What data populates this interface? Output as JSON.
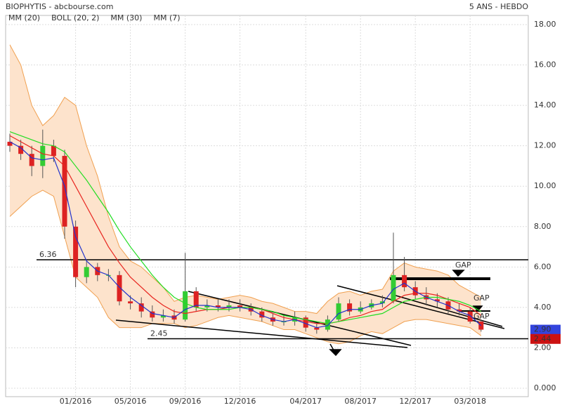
{
  "chart_data": {
    "type": "candlestick",
    "title": "BIOPHYTIS - abcbourse.com",
    "subtitle": "5 ANS - HEBDO",
    "categories": [
      null,
      null,
      null,
      null,
      null,
      null,
      "01/2016",
      null,
      null,
      null,
      null,
      "05/2016",
      null,
      null,
      null,
      null,
      "09/2016",
      null,
      null,
      null,
      null,
      "12/2016",
      null,
      null,
      null,
      null,
      null,
      "04/2017",
      null,
      null,
      null,
      null,
      "08/2017",
      null,
      null,
      null,
      null,
      "12/2017",
      null,
      null,
      null,
      null,
      "03/2018",
      null
    ],
    "open": [
      12.2,
      12.0,
      11.6,
      11.0,
      12.0,
      11.5,
      8.0,
      5.5,
      6.0,
      5.6,
      5.6,
      4.3,
      4.2,
      3.8,
      3.5,
      3.6,
      3.4,
      4.8,
      4.0,
      4.1,
      4.0,
      4.1,
      4.0,
      3.8,
      3.5,
      3.3,
      3.3,
      3.5,
      3.0,
      2.9,
      3.4,
      4.2,
      3.8,
      4.0,
      4.2,
      4.3,
      5.6,
      5.0,
      4.6,
      4.4,
      4.3,
      3.9,
      3.8,
      3.3
    ],
    "high": [
      12.6,
      12.3,
      12.0,
      12.8,
      12.3,
      11.8,
      8.3,
      6.3,
      6.2,
      5.9,
      5.8,
      4.6,
      4.5,
      4.1,
      3.9,
      3.9,
      6.7,
      5.0,
      4.4,
      4.4,
      4.4,
      4.4,
      4.2,
      4.0,
      3.7,
      3.6,
      3.8,
      3.6,
      3.2,
      3.6,
      4.5,
      4.4,
      4.3,
      4.4,
      4.6,
      7.7,
      6.5,
      5.3,
      5.0,
      4.7,
      4.5,
      4.2,
      4.0,
      3.4
    ],
    "low": [
      11.7,
      11.3,
      10.5,
      10.4,
      11.2,
      7.4,
      5.0,
      5.2,
      5.3,
      5.3,
      4.1,
      3.9,
      3.5,
      3.3,
      3.3,
      3.2,
      3.3,
      3.8,
      3.8,
      3.8,
      3.8,
      3.8,
      3.6,
      3.3,
      3.1,
      3.1,
      3.1,
      2.8,
      2.7,
      2.8,
      3.3,
      3.6,
      3.7,
      3.9,
      4.0,
      4.2,
      4.8,
      4.4,
      4.1,
      4.0,
      3.7,
      3.6,
      3.2,
      2.8
    ],
    "close": [
      12.0,
      11.6,
      11.0,
      12.0,
      11.5,
      8.0,
      5.5,
      6.0,
      5.6,
      5.6,
      4.3,
      4.2,
      3.8,
      3.5,
      3.6,
      3.4,
      4.8,
      4.0,
      4.1,
      4.0,
      4.1,
      4.0,
      3.8,
      3.5,
      3.3,
      3.3,
      3.5,
      3.0,
      2.9,
      3.4,
      4.2,
      3.8,
      4.0,
      4.2,
      4.3,
      5.6,
      5.0,
      4.6,
      4.4,
      4.3,
      3.9,
      3.8,
      3.3,
      2.9
    ],
    "up_color": "#33cc33",
    "down_color": "#dd2222",
    "series": [
      {
        "name": "MM (20)",
        "color": "#e8251f",
        "values": [
          12.5,
          12.2,
          11.9,
          11.6,
          11.5,
          11.0,
          10.0,
          9.0,
          8.0,
          7.0,
          6.2,
          5.5,
          5.0,
          4.5,
          4.1,
          3.8,
          3.7,
          3.8,
          3.9,
          3.9,
          4.0,
          4.0,
          4.0,
          3.9,
          3.7,
          3.5,
          3.4,
          3.3,
          3.2,
          3.2,
          3.3,
          3.5,
          3.6,
          3.8,
          3.9,
          4.3,
          4.6,
          4.7,
          4.7,
          4.6,
          4.4,
          4.2,
          4.0,
          3.6
        ]
      },
      {
        "name": "BOLL (20, 2)",
        "color": "#f0a050",
        "fill": "#fde3cc",
        "upper": [
          17.0,
          16.0,
          14.0,
          13.0,
          13.5,
          14.4,
          14.0,
          12.0,
          10.5,
          8.5,
          7.0,
          6.3,
          6.0,
          5.5,
          5.0,
          4.3,
          4.5,
          4.6,
          4.5,
          4.4,
          4.5,
          4.6,
          4.5,
          4.3,
          4.2,
          4.0,
          3.8,
          3.8,
          3.7,
          4.3,
          4.7,
          4.8,
          4.6,
          4.8,
          4.9,
          5.8,
          6.2,
          6.0,
          5.9,
          5.8,
          5.6,
          5.1,
          4.8,
          4.5
        ],
        "lower": [
          8.5,
          9.0,
          9.5,
          9.8,
          9.5,
          7.5,
          5.5,
          5.0,
          4.5,
          3.5,
          3.0,
          3.0,
          3.0,
          3.2,
          3.2,
          3.2,
          3.0,
          3.1,
          3.3,
          3.5,
          3.6,
          3.5,
          3.4,
          3.3,
          3.1,
          2.9,
          2.9,
          2.7,
          2.5,
          2.3,
          2.2,
          2.3,
          2.6,
          2.8,
          2.7,
          3.0,
          3.3,
          3.4,
          3.4,
          3.3,
          3.2,
          3.1,
          3.0,
          2.6
        ]
      },
      {
        "name": "MM (30)",
        "color": "#22dd22",
        "values": [
          12.7,
          12.5,
          12.3,
          12.1,
          12.0,
          11.7,
          11.0,
          10.3,
          9.5,
          8.7,
          7.8,
          7.0,
          6.3,
          5.6,
          5.0,
          4.5,
          4.2,
          4.0,
          3.9,
          3.9,
          3.9,
          4.0,
          4.0,
          3.9,
          3.8,
          3.6,
          3.5,
          3.4,
          3.3,
          3.2,
          3.3,
          3.4,
          3.5,
          3.6,
          3.7,
          4.0,
          4.3,
          4.4,
          4.5,
          4.5,
          4.4,
          4.3,
          4.1,
          3.8
        ]
      },
      {
        "name": "MM (7)",
        "color": "#2233cc",
        "values": [
          12.2,
          11.9,
          11.4,
          11.3,
          11.4,
          10.0,
          7.5,
          6.3,
          5.8,
          5.6,
          5.0,
          4.5,
          4.1,
          3.7,
          3.6,
          3.5,
          3.9,
          4.1,
          4.1,
          4.0,
          4.0,
          4.0,
          3.9,
          3.6,
          3.4,
          3.3,
          3.4,
          3.2,
          3.0,
          3.1,
          3.7,
          3.9,
          3.9,
          4.1,
          4.2,
          4.9,
          5.2,
          4.8,
          4.5,
          4.3,
          4.1,
          3.8,
          3.6,
          3.1
        ]
      }
    ],
    "ylim": [
      0,
      18
    ],
    "yticks": [
      {
        "value": 0,
        "label": "0.000"
      },
      {
        "value": 2,
        "label": "2.00"
      },
      {
        "value": 4,
        "label": "4.00"
      },
      {
        "value": 6,
        "label": "6.00"
      },
      {
        "value": 8,
        "label": "8.00"
      },
      {
        "value": 10,
        "label": "10.00"
      },
      {
        "value": 12,
        "label": "12.00"
      },
      {
        "value": 14,
        "label": "14.00"
      },
      {
        "value": 16,
        "label": "16.00"
      },
      {
        "value": 18,
        "label": "18.00"
      }
    ],
    "grid": true,
    "hlines": [
      {
        "value": 6.36,
        "label": "6.36"
      },
      {
        "value": 2.45,
        "label": "2.45"
      }
    ],
    "price_tags": [
      {
        "value": 2.9,
        "label": "2.90",
        "color": "#3344dd"
      },
      {
        "value": 2.44,
        "label": "2.44",
        "color": "#cc1111"
      }
    ],
    "annotations": [
      "GAP",
      "GAP",
      "GAP"
    ]
  }
}
